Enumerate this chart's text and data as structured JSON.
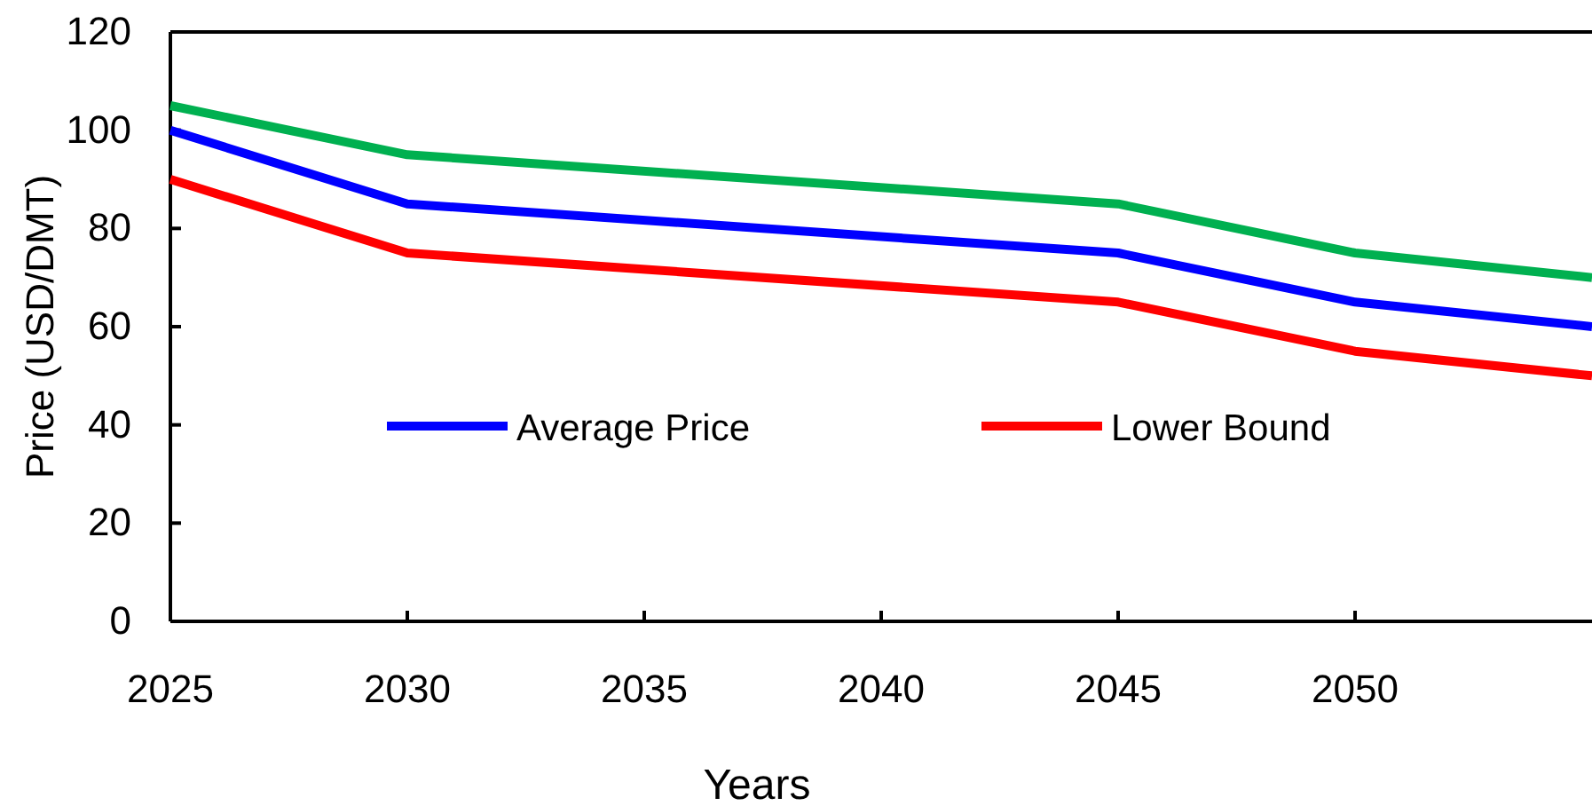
{
  "chart_data": {
    "type": "line",
    "xlabel": "Years",
    "ylabel": "Price (USD/DMT)",
    "x": [
      2025,
      2030,
      2045,
      2050,
      2055
    ],
    "series": [
      {
        "color": "#00b050",
        "values": [
          105,
          95,
          85,
          75,
          70
        ]
      },
      {
        "name": "Average Price",
        "color": "#0000ff",
        "values": [
          100,
          85,
          75,
          65,
          60
        ]
      },
      {
        "name": "Lower Bound",
        "color": "#ff0000",
        "values": [
          90,
          75,
          65,
          55,
          50
        ]
      }
    ],
    "xlim": [
      2025,
      2055
    ],
    "xticks": [
      2025,
      2030,
      2035,
      2040,
      2045,
      2050
    ],
    "ylim": [
      0,
      120
    ],
    "yticks": [
      0,
      20,
      40,
      60,
      80,
      100,
      120
    ],
    "legend": "center",
    "line_style": "solid",
    "grid": false
  }
}
